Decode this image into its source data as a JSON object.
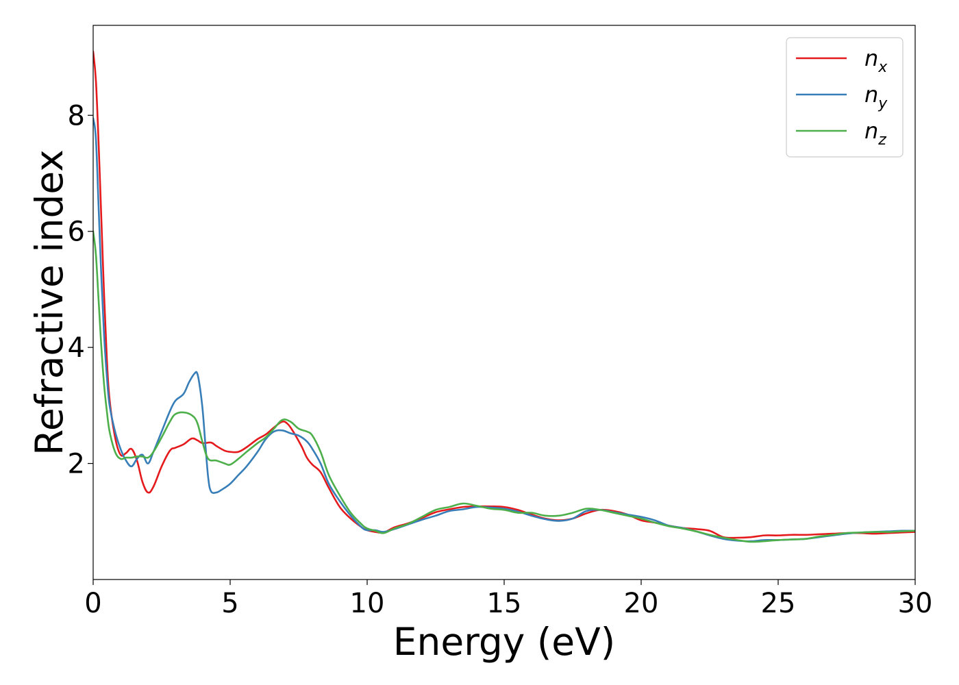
{
  "chart_data": {
    "type": "line",
    "xlabel": "Energy (eV)",
    "ylabel": "Refractive index",
    "xlim": [
      0,
      30
    ],
    "ylim": [
      0,
      9.55
    ],
    "xticks": [
      0,
      5,
      10,
      15,
      20,
      25,
      30
    ],
    "yticks": [
      2,
      4,
      6,
      8
    ],
    "grid": false,
    "legend_position": "top-right",
    "series": [
      {
        "name": "n_x",
        "label_main": "n",
        "label_sub": "x",
        "color": "#e41a1c",
        "x": [
          0,
          0.1,
          0.2,
          0.3,
          0.4,
          0.5,
          0.6,
          0.8,
          1.0,
          1.2,
          1.4,
          1.6,
          1.8,
          2.0,
          2.2,
          2.5,
          2.8,
          3.0,
          3.3,
          3.6,
          3.8,
          4.0,
          4.3,
          4.5,
          4.8,
          5.0,
          5.3,
          5.6,
          6.0,
          6.3,
          6.6,
          6.9,
          7.1,
          7.3,
          7.6,
          7.8,
          8.0,
          8.3,
          8.6,
          9.0,
          9.4,
          9.8,
          10.0,
          10.3,
          10.6,
          11.0,
          11.5,
          12.0,
          12.5,
          13.0,
          13.5,
          14.0,
          14.5,
          15.0,
          15.5,
          16.0,
          16.5,
          17.0,
          17.5,
          18.0,
          18.5,
          19.0,
          19.5,
          20.0,
          20.5,
          21.0,
          21.5,
          22.0,
          22.5,
          23.0,
          23.5,
          24.0,
          24.5,
          25.0,
          25.5,
          26.0,
          26.5,
          27.0,
          27.5,
          28.0,
          28.5,
          29.0,
          29.5,
          30.0
        ],
        "y": [
          9.1,
          8.6,
          7.5,
          6.2,
          4.9,
          3.8,
          3.1,
          2.45,
          2.15,
          2.18,
          2.25,
          2.05,
          1.68,
          1.5,
          1.6,
          1.95,
          2.22,
          2.27,
          2.33,
          2.43,
          2.4,
          2.35,
          2.36,
          2.3,
          2.22,
          2.2,
          2.2,
          2.28,
          2.42,
          2.5,
          2.62,
          2.72,
          2.68,
          2.55,
          2.3,
          2.1,
          1.98,
          1.85,
          1.58,
          1.25,
          1.05,
          0.9,
          0.85,
          0.82,
          0.81,
          0.9,
          0.97,
          1.06,
          1.16,
          1.21,
          1.25,
          1.26,
          1.26,
          1.25,
          1.2,
          1.12,
          1.05,
          1.02,
          1.05,
          1.14,
          1.2,
          1.18,
          1.12,
          1.02,
          0.98,
          0.93,
          0.89,
          0.87,
          0.84,
          0.73,
          0.72,
          0.73,
          0.76,
          0.76,
          0.77,
          0.77,
          0.78,
          0.79,
          0.8,
          0.8,
          0.79,
          0.8,
          0.81,
          0.82
        ]
      },
      {
        "name": "n_y",
        "label_main": "n",
        "label_sub": "y",
        "color": "#377eb8",
        "x": [
          0,
          0.1,
          0.2,
          0.3,
          0.4,
          0.5,
          0.6,
          0.8,
          1.0,
          1.2,
          1.4,
          1.6,
          1.8,
          2.0,
          2.2,
          2.5,
          2.8,
          3.0,
          3.3,
          3.5,
          3.7,
          3.8,
          3.9,
          4.0,
          4.1,
          4.2,
          4.3,
          4.5,
          4.7,
          5.0,
          5.3,
          5.6,
          6.0,
          6.3,
          6.6,
          6.9,
          7.2,
          7.5,
          7.8,
          8.0,
          8.3,
          8.6,
          9.0,
          9.4,
          9.8,
          10.0,
          10.3,
          10.6,
          11.0,
          11.5,
          12.0,
          12.5,
          13.0,
          13.5,
          14.0,
          14.5,
          15.0,
          15.5,
          16.0,
          16.5,
          17.0,
          17.5,
          18.0,
          18.5,
          19.0,
          19.5,
          20.0,
          20.5,
          21.0,
          21.5,
          22.0,
          22.5,
          23.0,
          23.5,
          24.0,
          24.5,
          25.0,
          25.5,
          26.0,
          26.5,
          27.0,
          27.5,
          28.0,
          28.5,
          29.0,
          29.5,
          30.0
        ],
        "y": [
          7.95,
          7.6,
          6.4,
          5.2,
          4.2,
          3.5,
          3.0,
          2.55,
          2.25,
          2.05,
          1.95,
          2.08,
          2.15,
          2.0,
          2.2,
          2.55,
          2.9,
          3.08,
          3.2,
          3.4,
          3.55,
          3.55,
          3.3,
          2.9,
          2.3,
          1.75,
          1.52,
          1.5,
          1.55,
          1.65,
          1.8,
          1.95,
          2.2,
          2.42,
          2.55,
          2.57,
          2.52,
          2.48,
          2.38,
          2.25,
          2.0,
          1.65,
          1.35,
          1.1,
          0.9,
          0.85,
          0.85,
          0.82,
          0.87,
          0.95,
          1.03,
          1.1,
          1.18,
          1.21,
          1.25,
          1.24,
          1.22,
          1.17,
          1.1,
          1.04,
          1.01,
          1.05,
          1.18,
          1.2,
          1.16,
          1.12,
          1.08,
          1.02,
          0.93,
          0.89,
          0.83,
          0.76,
          0.7,
          0.67,
          0.66,
          0.68,
          0.68,
          0.69,
          0.7,
          0.73,
          0.76,
          0.79,
          0.81,
          0.82,
          0.83,
          0.84,
          0.84
        ]
      },
      {
        "name": "n_z",
        "label_main": "n",
        "label_sub": "z",
        "color": "#4daf4a",
        "x": [
          0,
          0.1,
          0.2,
          0.3,
          0.4,
          0.5,
          0.6,
          0.8,
          1.0,
          1.2,
          1.4,
          1.6,
          1.8,
          2.0,
          2.2,
          2.5,
          2.8,
          3.0,
          3.3,
          3.6,
          3.8,
          4.0,
          4.2,
          4.5,
          4.8,
          5.0,
          5.3,
          5.6,
          6.0,
          6.3,
          6.6,
          6.9,
          7.2,
          7.5,
          7.8,
          8.0,
          8.3,
          8.6,
          9.0,
          9.4,
          9.8,
          10.0,
          10.3,
          10.6,
          11.0,
          11.5,
          12.0,
          12.5,
          13.0,
          13.5,
          14.0,
          14.5,
          15.0,
          15.5,
          16.0,
          16.5,
          17.0,
          17.5,
          18.0,
          18.5,
          19.0,
          19.5,
          20.0,
          20.5,
          21.0,
          21.5,
          22.0,
          22.5,
          23.0,
          23.5,
          24.0,
          24.5,
          25.0,
          25.5,
          26.0,
          26.5,
          27.0,
          27.5,
          28.0,
          28.5,
          29.0,
          29.5,
          30.0
        ],
        "y": [
          6.0,
          5.6,
          4.8,
          4.0,
          3.35,
          2.9,
          2.55,
          2.2,
          2.08,
          2.1,
          2.1,
          2.12,
          2.12,
          2.1,
          2.2,
          2.45,
          2.72,
          2.85,
          2.88,
          2.83,
          2.7,
          2.35,
          2.08,
          2.05,
          2.0,
          1.98,
          2.08,
          2.2,
          2.35,
          2.45,
          2.6,
          2.75,
          2.72,
          2.6,
          2.55,
          2.48,
          2.2,
          1.8,
          1.45,
          1.15,
          0.95,
          0.88,
          0.84,
          0.8,
          0.88,
          0.96,
          1.08,
          1.2,
          1.25,
          1.31,
          1.27,
          1.22,
          1.2,
          1.15,
          1.15,
          1.1,
          1.1,
          1.15,
          1.22,
          1.2,
          1.15,
          1.1,
          1.05,
          0.98,
          0.92,
          0.88,
          0.83,
          0.77,
          0.72,
          0.68,
          0.65,
          0.66,
          0.68,
          0.69,
          0.7,
          0.74,
          0.77,
          0.8,
          0.81,
          0.82,
          0.82,
          0.83,
          0.84
        ]
      }
    ]
  }
}
